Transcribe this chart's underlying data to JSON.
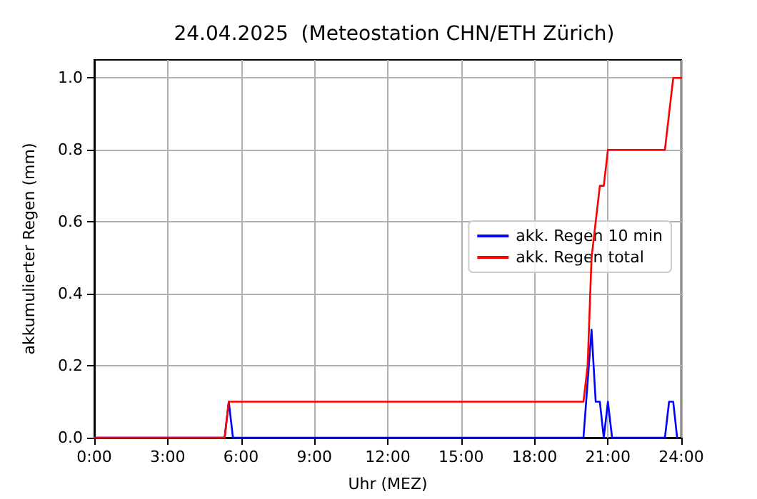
{
  "chart_data": {
    "type": "line",
    "title": "24.04.2025  (Meteostation CHN/ETH Zürich)",
    "xlabel": "Uhr (MEZ)",
    "ylabel": "akkumulierter Regen (mm)",
    "series": [
      {
        "name": "akk. Regen 10 min",
        "color": "#0000ff",
        "x": [
          0,
          5.33,
          5.5,
          5.67,
          20,
          20.33,
          20.5,
          20.67,
          20.83,
          21,
          21.17,
          23.33,
          23.5,
          23.67,
          23.83
        ],
        "values": [
          0,
          0,
          0.1,
          0,
          0,
          0.3,
          0.1,
          0.1,
          0,
          0.1,
          0,
          0,
          0.1,
          0.1,
          0
        ]
      },
      {
        "name": "akk. Regen total",
        "color": "#ff0000",
        "x": [
          0,
          5.33,
          5.5,
          20,
          20.17,
          20.33,
          20.5,
          20.67,
          20.83,
          21,
          23.33,
          23.5,
          23.67,
          24
        ],
        "values": [
          0,
          0,
          0.1,
          0.1,
          0.2,
          0.5,
          0.6,
          0.7,
          0.7,
          0.8,
          0.8,
          0.9,
          1.0,
          1.0
        ]
      }
    ],
    "xlim": [
      0,
      24
    ],
    "xticks": [
      {
        "value": 0,
        "label": "0:00"
      },
      {
        "value": 3,
        "label": "3:00"
      },
      {
        "value": 6,
        "label": "6:00"
      },
      {
        "value": 9,
        "label": "9:00"
      },
      {
        "value": 12,
        "label": "12:00"
      },
      {
        "value": 15,
        "label": "15:00"
      },
      {
        "value": 18,
        "label": "18:00"
      },
      {
        "value": 21,
        "label": "21:00"
      },
      {
        "value": 24,
        "label": "24:00"
      }
    ],
    "ylim": [
      0,
      1.05
    ],
    "yticks": [
      {
        "value": 0,
        "label": "0.0"
      },
      {
        "value": 0.2,
        "label": "0.2"
      },
      {
        "value": 0.4,
        "label": "0.4"
      },
      {
        "value": 0.6,
        "label": "0.6"
      },
      {
        "value": 0.8,
        "label": "0.8"
      },
      {
        "value": 1,
        "label": "1.0"
      }
    ],
    "grid": true,
    "legend": "right",
    "marker": "none",
    "line_style": "solid"
  }
}
